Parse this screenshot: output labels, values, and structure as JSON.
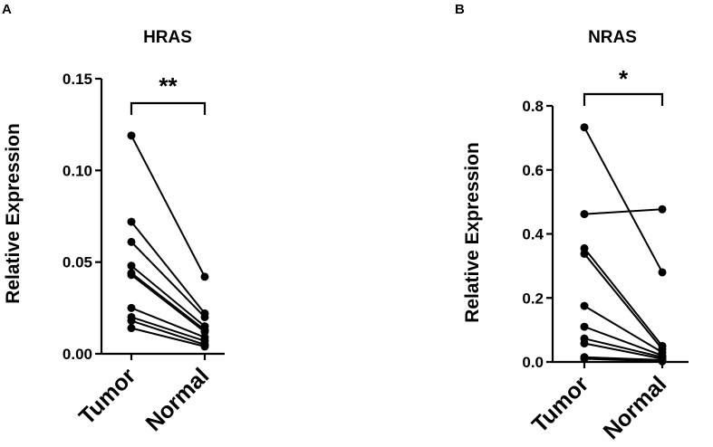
{
  "panels": [
    {
      "letter": "A",
      "chart_data": {
        "type": "line",
        "title": "HRAS",
        "xlabel": "",
        "ylabel": "Relative Expression",
        "categories": [
          "Tumor",
          "Normal"
        ],
        "ylim": [
          0,
          0.15
        ],
        "yticks": [
          "0.00",
          "0.05",
          "0.10",
          "0.15"
        ],
        "ytick_values": [
          0,
          0.05,
          0.1,
          0.15
        ],
        "significance": "**",
        "grid": false,
        "pairs": [
          [
            0.119,
            0.042
          ],
          [
            0.072,
            0.022
          ],
          [
            0.061,
            0.02
          ],
          [
            0.048,
            0.015
          ],
          [
            0.044,
            0.013
          ],
          [
            0.043,
            0.012
          ],
          [
            0.025,
            0.009
          ],
          [
            0.02,
            0.007
          ],
          [
            0.018,
            0.005
          ],
          [
            0.014,
            0.004
          ]
        ]
      }
    },
    {
      "letter": "B",
      "chart_data": {
        "type": "line",
        "title": "NRAS",
        "xlabel": "",
        "ylabel": "Relative Expression",
        "categories": [
          "Tumor",
          "Normal"
        ],
        "ylim": [
          0,
          0.8
        ],
        "yticks": [
          "0.0",
          "0.2",
          "0.4",
          "0.6",
          "0.8"
        ],
        "ytick_values": [
          0,
          0.2,
          0.4,
          0.6,
          0.8
        ],
        "significance": "*",
        "grid": false,
        "pairs": [
          [
            0.733,
            0.28
          ],
          [
            0.462,
            0.477
          ],
          [
            0.355,
            0.05
          ],
          [
            0.338,
            0.04
          ],
          [
            0.175,
            0.03
          ],
          [
            0.11,
            0.02
          ],
          [
            0.073,
            0.015
          ],
          [
            0.058,
            0.01
          ],
          [
            0.015,
            0.006
          ],
          [
            0.01,
            0.002
          ]
        ]
      }
    }
  ]
}
